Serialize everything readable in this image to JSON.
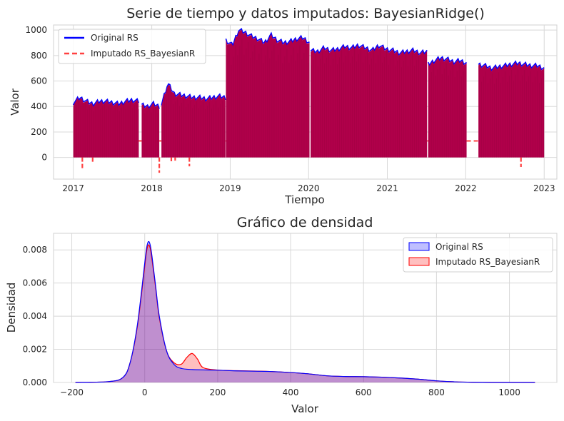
{
  "chart_data": [
    {
      "type": "line",
      "title": "Serie de tiempo y datos imputados: BayesianRidge()",
      "xlabel": "Tiempo",
      "ylabel": "Valor",
      "xlim": [
        "2016-10-01",
        "2023-03-01"
      ],
      "ylim": [
        -170,
        1040
      ],
      "x_ticks": [
        "2017",
        "2018",
        "2019",
        "2020",
        "2021",
        "2022",
        "2023"
      ],
      "y_ticks": [
        0,
        200,
        400,
        600,
        800,
        1000
      ],
      "grid": true,
      "legend": "top-left",
      "series": [
        {
          "name": "Original RS",
          "style": "solid",
          "color": "#0000ff",
          "segments": [
            {
              "start": "2017-01-01",
              "end": "2017-11-01",
              "top": [
                430,
                470,
                440,
                420,
                440,
                440,
                430,
                420,
                440,
                450,
                440
              ],
              "min": 0
            },
            {
              "start": "2017-11-15",
              "end": "2018-02-05",
              "top": [
                410,
                400,
                420,
                400
              ],
              "min": 0
            },
            {
              "start": "2018-02-15",
              "end": "2018-12-10",
              "top": [
                420,
                580,
                500,
                490,
                480,
                470,
                470,
                460,
                470,
                480,
                470
              ],
              "min": 0
            },
            {
              "start": "2018-12-12",
              "end": "2020-01-05",
              "top": [
                920,
                880,
                1000,
                980,
                950,
                930,
                900,
                960,
                920,
                900,
                910,
                930,
                940,
                900
              ],
              "min": 0
            },
            {
              "start": "2020-01-10",
              "end": "2021-07-05",
              "top": [
                840,
                830,
                860,
                840,
                850,
                870,
                860,
                880,
                860,
                840,
                880,
                850,
                840,
                820,
                830,
                840,
                820,
                830
              ],
              "min": 0
            },
            {
              "start": "2021-07-10",
              "end": "2022-01-05",
              "top": [
                730,
                760,
                780,
                770,
                750,
                760,
                740
              ],
              "min": 0
            },
            {
              "start": "2022-03-01",
              "end": "2023-01-01",
              "top": [
                730,
                720,
                700,
                710,
                720,
                730,
                740,
                730,
                720,
                720,
                700
              ],
              "min": 0
            }
          ]
        },
        {
          "name": "Imputado RS_BayesianR",
          "style": "dashed",
          "color": "#b0004a",
          "imputed_gap_fill": [
            {
              "start": "2017-11-01",
              "end": "2017-11-15",
              "value": 130
            },
            {
              "start": "2018-02-05",
              "end": "2018-02-15",
              "value": 130
            },
            {
              "start": "2018-12-10",
              "end": "2018-12-12",
              "value": 130
            },
            {
              "start": "2021-07-05",
              "end": "2021-07-10",
              "value": 130
            },
            {
              "start": "2022-01-05",
              "end": "2022-03-01",
              "value": 130
            }
          ],
          "negative_spikes": [
            {
              "date": "2017-02-12",
              "value": -95
            },
            {
              "date": "2017-04-01",
              "value": -50
            },
            {
              "date": "2018-02-05",
              "value": -120
            },
            {
              "date": "2018-04-02",
              "value": -30
            },
            {
              "date": "2018-04-20",
              "value": -25
            },
            {
              "date": "2018-06-25",
              "value": -70
            },
            {
              "date": "2022-09-15",
              "value": -75
            }
          ]
        }
      ]
    },
    {
      "type": "area",
      "title": "Gráfico de densidad",
      "xlabel": "Valor",
      "ylabel": "Densidad",
      "xlim": [
        -250,
        1130
      ],
      "ylim": [
        0,
        0.009
      ],
      "x_ticks": [
        -200,
        0,
        200,
        400,
        600,
        800,
        1000
      ],
      "y_ticks": [
        "0.000",
        "0.002",
        "0.004",
        "0.006",
        "0.008"
      ],
      "grid": true,
      "legend": "top-right",
      "series": [
        {
          "name": "Original RS",
          "color": "#0000ff",
          "x": [
            -190,
            -100,
            -60,
            -40,
            -20,
            0,
            5,
            10,
            15,
            20,
            30,
            40,
            60,
            80,
            100,
            130,
            160,
            200,
            250,
            300,
            350,
            400,
            450,
            500,
            550,
            600,
            650,
            700,
            750,
            800,
            850,
            900,
            950,
            1000,
            1070
          ],
          "y": [
            0.0,
            5e-05,
            0.0003,
            0.0012,
            0.0035,
            0.0072,
            0.0081,
            0.0085,
            0.0083,
            0.0076,
            0.0058,
            0.004,
            0.0019,
            0.0011,
            0.00085,
            0.00078,
            0.00076,
            0.00074,
            0.0007,
            0.00068,
            0.00066,
            0.0006,
            0.00052,
            0.0004,
            0.00036,
            0.00035,
            0.00032,
            0.00027,
            0.0002,
            0.0001,
            4e-05,
            1e-05,
            0.0,
            0.0,
            0.0
          ]
        },
        {
          "name": "Imputado RS_BayesianR",
          "color": "#ff0000",
          "x": [
            -190,
            -100,
            -60,
            -40,
            -20,
            0,
            5,
            10,
            15,
            20,
            30,
            40,
            60,
            80,
            100,
            115,
            130,
            145,
            160,
            200,
            250,
            300,
            350,
            400,
            450,
            500,
            550,
            600,
            650,
            700,
            750,
            800,
            850,
            900,
            950,
            1000,
            1070
          ],
          "y": [
            0.0,
            5e-05,
            0.0003,
            0.0012,
            0.0034,
            0.007,
            0.0079,
            0.0083,
            0.0081,
            0.0074,
            0.0057,
            0.0039,
            0.0019,
            0.0012,
            0.0011,
            0.0015,
            0.00175,
            0.0014,
            0.0009,
            0.00075,
            0.00071,
            0.00069,
            0.00066,
            0.0006,
            0.00052,
            0.0004,
            0.00036,
            0.00035,
            0.00032,
            0.00027,
            0.0002,
            0.0001,
            4e-05,
            1e-05,
            0.0,
            0.0,
            0.0
          ]
        }
      ]
    }
  ]
}
